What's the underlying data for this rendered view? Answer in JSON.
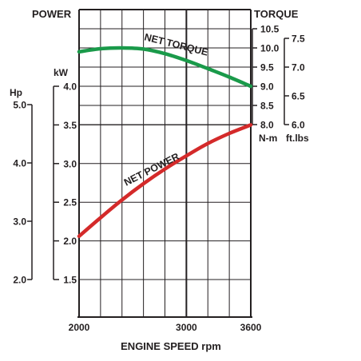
{
  "chart_data": {
    "type": "line",
    "title_left": "POWER",
    "title_right": "TORQUE",
    "xlabel": "ENGINE SPEED rpm",
    "x_ticks": [
      "2000",
      "3000",
      "3600"
    ],
    "x_range": [
      2000,
      3600
    ],
    "power_axes": {
      "kw_unit": "kW",
      "hp_unit": "Hp",
      "kw_ticks": [
        "1.5",
        "2.0",
        "2.5",
        "3.0",
        "3.5",
        "4.0"
      ],
      "hp_ticks": [
        "2.0",
        "3.0",
        "4.0",
        "5.0"
      ],
      "kw_range": [
        1.5,
        4.0
      ]
    },
    "torque_axes": {
      "nm_unit": "N-m",
      "ftlbs_unit": "ft.lbs",
      "nm_ticks": [
        "8.0",
        "8.5",
        "9.0",
        "9.5",
        "10.0",
        "10.5"
      ],
      "ftlbs_ticks": [
        "6.0",
        "6.5",
        "7.0",
        "7.5"
      ],
      "nm_range": [
        8.0,
        10.5
      ]
    },
    "series": [
      {
        "name": "NET TORQUE",
        "axis": "torque_nm",
        "color": "#1a9a4a",
        "x": [
          2000,
          2200,
          2400,
          2600,
          2800,
          3000,
          3200,
          3400,
          3600
        ],
        "y": [
          9.9,
          9.98,
          10.0,
          9.97,
          9.85,
          9.67,
          9.46,
          9.24,
          9.0
        ]
      },
      {
        "name": "NET POWER",
        "axis": "power_kw",
        "color": "#d42a2a",
        "x": [
          2000,
          2200,
          2400,
          2600,
          2800,
          3000,
          3200,
          3400,
          3600
        ],
        "y": [
          2.06,
          2.3,
          2.53,
          2.74,
          2.93,
          3.1,
          3.26,
          3.39,
          3.5
        ]
      }
    ]
  }
}
